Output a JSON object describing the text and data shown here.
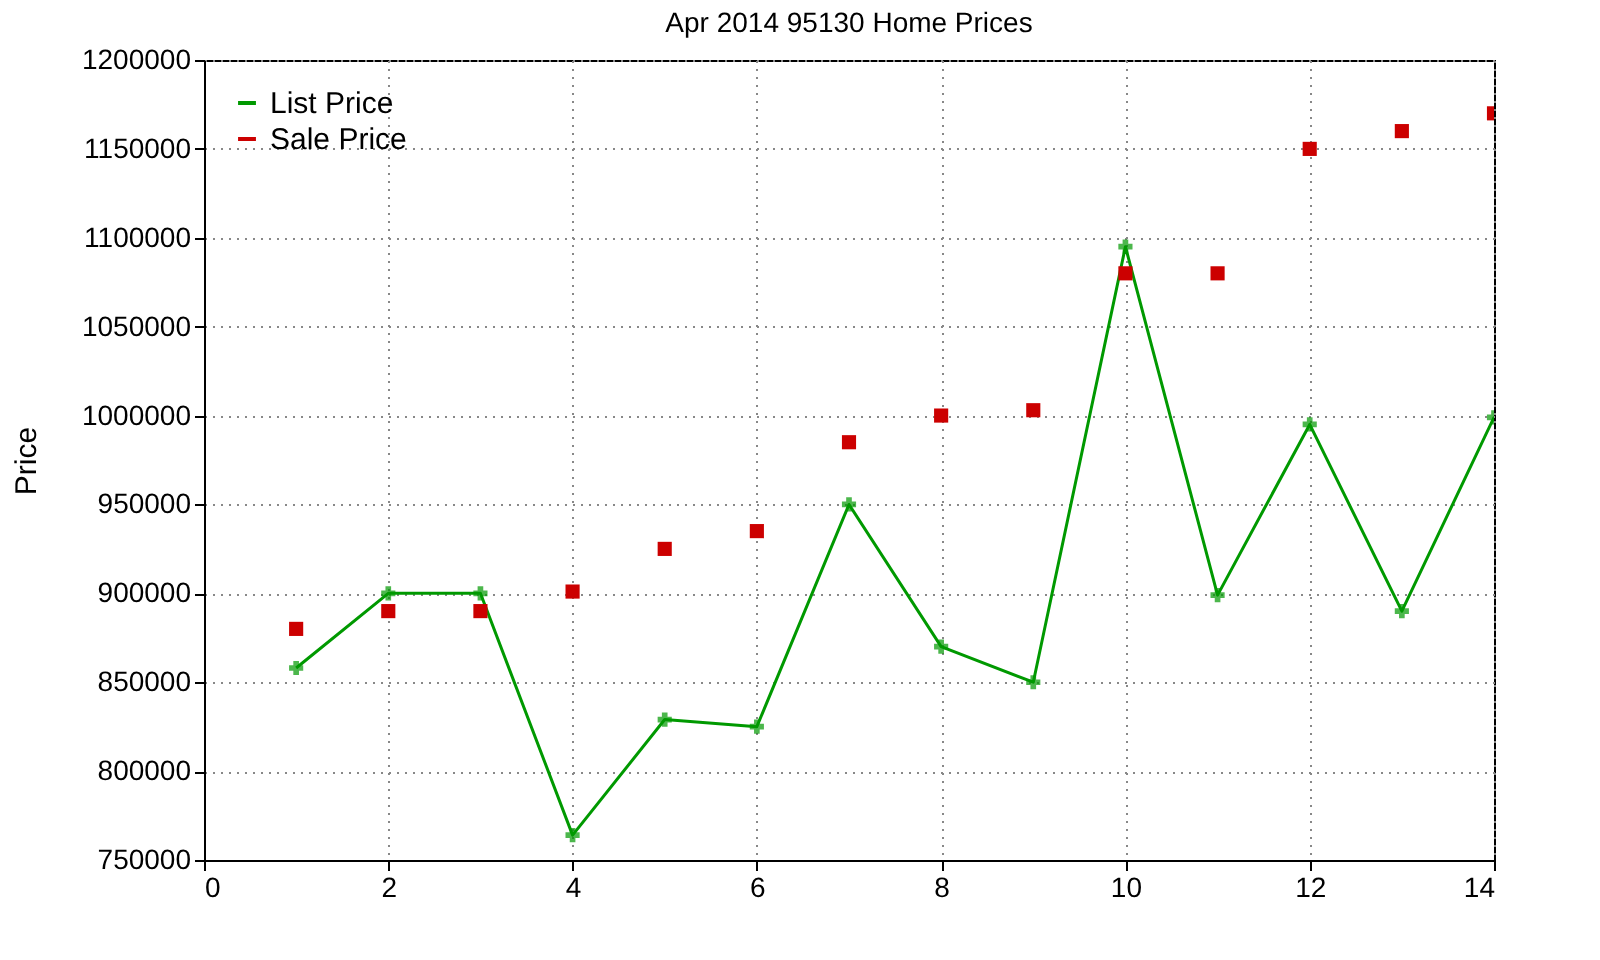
{
  "chart_data": {
    "type": "line",
    "title": "Apr 2014 95130 Home Prices",
    "ylabel": "Price",
    "x": [
      1,
      2,
      3,
      4,
      5,
      6,
      7,
      8,
      9,
      10,
      11,
      12,
      13,
      14
    ],
    "series": [
      {
        "name": "List Price",
        "marker": "cross",
        "color": "#009900",
        "values": [
          858000,
          900000,
          900000,
          764000,
          829000,
          825000,
          950000,
          870000,
          850000,
          1095000,
          899000,
          995000,
          890000,
          999000
        ]
      },
      {
        "name": "Sale Price",
        "type": "scatter",
        "marker": "square",
        "color": "#cc0000",
        "values": [
          880000,
          890000,
          890000,
          901000,
          925000,
          935000,
          985000,
          1000000,
          1003000,
          1080000,
          1080000,
          1150000,
          1160000,
          1170000
        ]
      }
    ],
    "xlim": [
      0,
      14
    ],
    "xticks": [
      0,
      2,
      4,
      6,
      8,
      10,
      12,
      14
    ],
    "ylim": [
      750000,
      1200000
    ],
    "yticks": [
      750000,
      800000,
      850000,
      900000,
      950000,
      1000000,
      1050000,
      1100000,
      1150000,
      1200000
    ],
    "grid": true,
    "legend": "top left"
  }
}
